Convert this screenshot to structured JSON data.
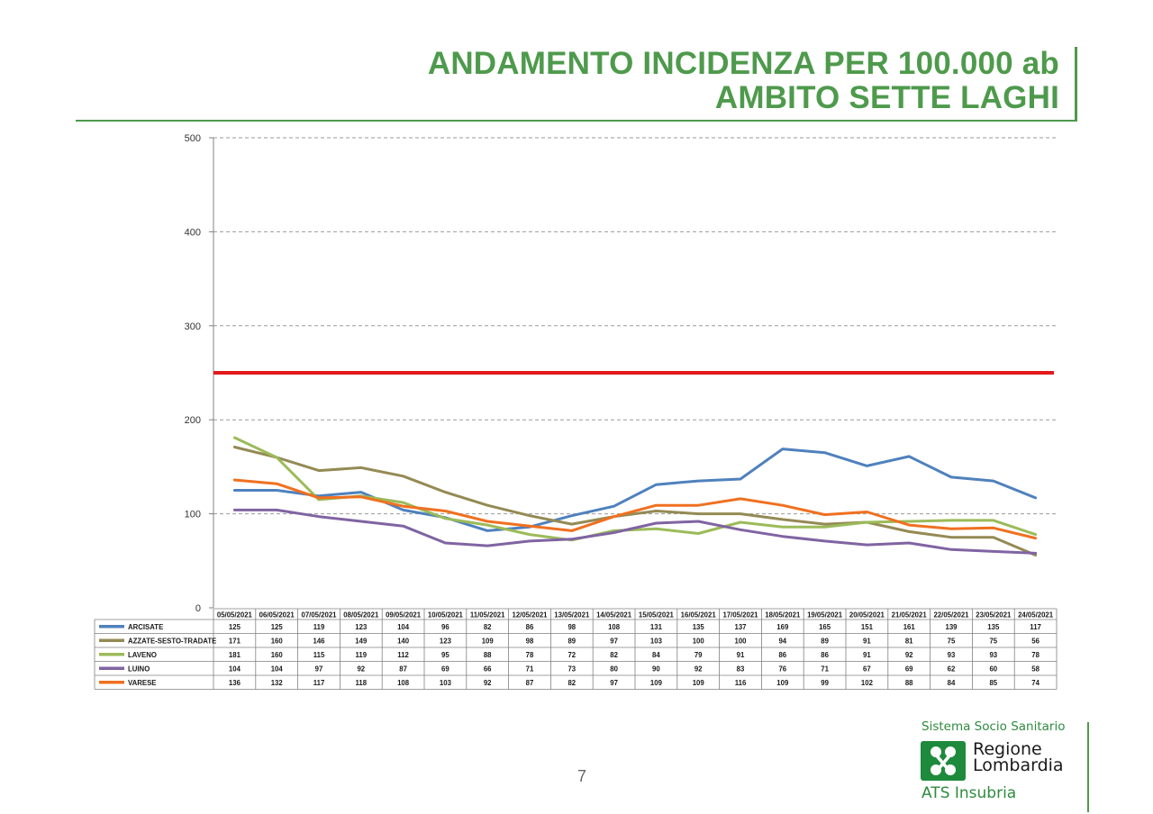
{
  "slide": {
    "title_line1": "ANDAMENTO INCIDENZA PER 100.000 ab",
    "title_line2": "AMBITO SETTE LAGHI",
    "page_number": "7",
    "accent_color": "#4e9a4c"
  },
  "logo": {
    "top_text": "Sistema Socio Sanitario",
    "region_line1": "Regione",
    "region_line2": "Lombardia",
    "bottom_text": "ATS Insubria",
    "icon": "regione-lombardia-rose-icon"
  },
  "chart_data": {
    "type": "line",
    "title": "",
    "xlabel": "",
    "ylabel": "",
    "ylim": [
      0,
      500
    ],
    "yticks": [
      0,
      100,
      200,
      300,
      400,
      500
    ],
    "grid": true,
    "legend": "data-table-below",
    "threshold": {
      "value": 250,
      "color": "#e31a1c"
    },
    "categories": [
      "05/05/2021",
      "06/05/2021",
      "07/05/2021",
      "08/05/2021",
      "09/05/2021",
      "10/05/2021",
      "11/05/2021",
      "12/05/2021",
      "13/05/2021",
      "14/05/2021",
      "15/05/2021",
      "16/05/2021",
      "17/05/2021",
      "18/05/2021",
      "19/05/2021",
      "20/05/2021",
      "21/05/2021",
      "22/05/2021",
      "23/05/2021",
      "24/05/2021"
    ],
    "series": [
      {
        "name": "ARCISATE",
        "color": "#4f81bd",
        "values": [
          125,
          125,
          119,
          123,
          104,
          96,
          82,
          86,
          98,
          108,
          131,
          135,
          137,
          169,
          165,
          151,
          161,
          139,
          135,
          117
        ]
      },
      {
        "name": "AZZATE-SESTO-TRADATE",
        "color": "#948a54",
        "values": [
          171,
          160,
          146,
          149,
          140,
          123,
          109,
          98,
          89,
          97,
          103,
          100,
          100,
          94,
          89,
          91,
          81,
          75,
          75,
          56
        ]
      },
      {
        "name": "LAVENO",
        "color": "#9bbb59",
        "values": [
          181,
          160,
          115,
          119,
          112,
          95,
          88,
          78,
          72,
          82,
          84,
          79,
          91,
          86,
          86,
          91,
          92,
          93,
          93,
          78
        ]
      },
      {
        "name": "LUINO",
        "color": "#8064a2",
        "values": [
          104,
          104,
          97,
          92,
          87,
          69,
          66,
          71,
          73,
          80,
          90,
          92,
          83,
          76,
          71,
          67,
          69,
          62,
          60,
          58
        ]
      },
      {
        "name": "VARESE",
        "color": "#f07020",
        "values": [
          136,
          132,
          117,
          118,
          108,
          103,
          92,
          87,
          82,
          97,
          109,
          109,
          116,
          109,
          99,
          102,
          88,
          84,
          85,
          74
        ]
      }
    ]
  }
}
